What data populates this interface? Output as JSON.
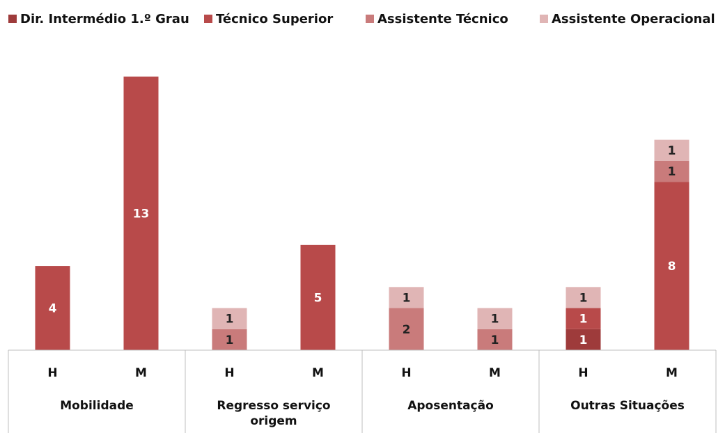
{
  "chart_data": {
    "type": "stacked-bar",
    "categories": [
      "H",
      "M",
      "H",
      "M",
      "H",
      "M",
      "H",
      "M"
    ],
    "groups": [
      "Mobilidade",
      "Regresso serviço origem",
      "Aposentação",
      "Outras Situações"
    ],
    "series": [
      {
        "name": "Dir. Intermédio 1.º Grau",
        "color": "#9e3b3b",
        "label_color": "#ffffff",
        "values": [
          null,
          null,
          null,
          null,
          null,
          null,
          1,
          null
        ]
      },
      {
        "name": "Técnico Superior",
        "color": "#b84a4a",
        "label_color": "#ffffff",
        "values": [
          4,
          13,
          null,
          5,
          null,
          null,
          1,
          8
        ]
      },
      {
        "name": "Assistente Técnico",
        "color": "#c97b7b",
        "label_color": "#222222",
        "values": [
          null,
          null,
          1,
          null,
          2,
          1,
          null,
          1
        ]
      },
      {
        "name": "Assistente Operacional",
        "color": "#e0b5b5",
        "label_color": "#222222",
        "values": [
          null,
          null,
          1,
          null,
          1,
          1,
          1,
          1
        ]
      }
    ],
    "ylim": [
      0,
      13
    ],
    "legend": "top"
  }
}
